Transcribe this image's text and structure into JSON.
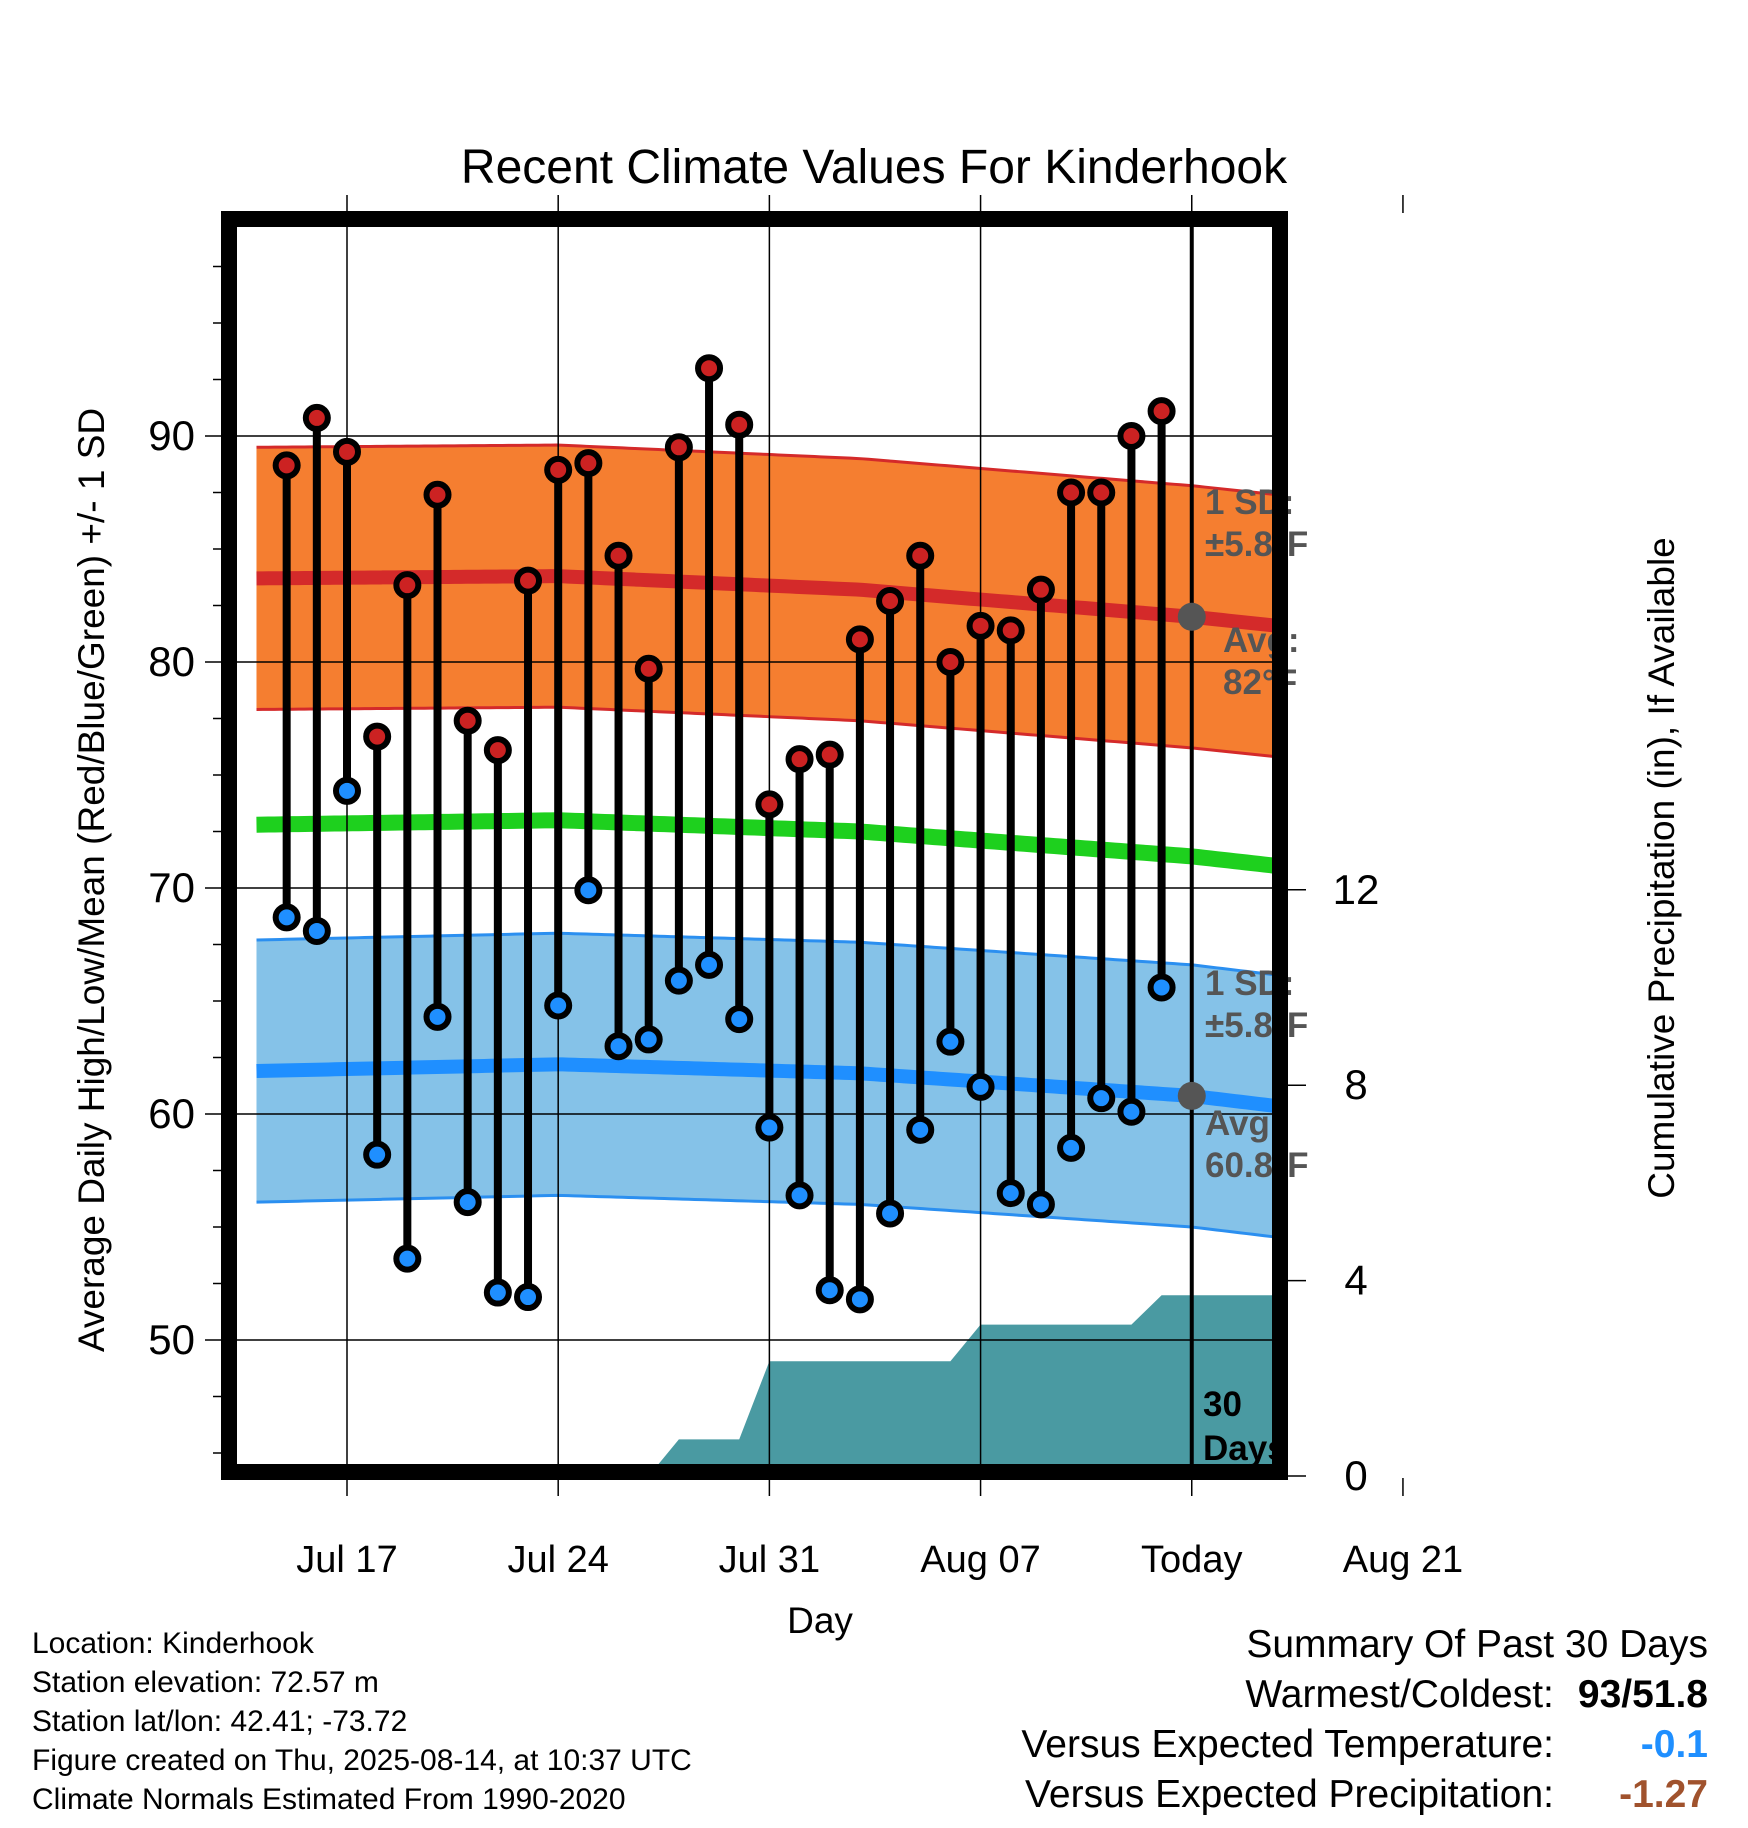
{
  "chart_data": {
    "type": "line",
    "title": "Recent Climate Values For Kinderhook",
    "xlabel": "Day",
    "ylabel": "Average Daily High/Low/Mean (Red/Blue/Green) +/- 1 SD",
    "y2label": "Cumulative Precipitation (in), If Available",
    "ylim": [
      44,
      98
    ],
    "y2lim": [
      0,
      25.6
    ],
    "xlim": [
      "2025-07-14",
      "2025-08-24"
    ],
    "x_ticks": [
      {
        "date": "2025-07-17",
        "label": "Jul 17"
      },
      {
        "date": "2025-07-24",
        "label": "Jul 24"
      },
      {
        "date": "2025-07-31",
        "label": "Jul 31"
      },
      {
        "date": "2025-08-07",
        "label": "Aug 07"
      },
      {
        "date": "2025-08-14",
        "label": "Today"
      },
      {
        "date": "2025-08-21",
        "label": "Aug 21"
      }
    ],
    "y_ticks": [
      50,
      60,
      70,
      80,
      90
    ],
    "y2_ticks": [
      0,
      4,
      8,
      12
    ],
    "grid": true,
    "today": "2025-08-14",
    "days": [
      "2025-07-15",
      "2025-07-16",
      "2025-07-17",
      "2025-07-18",
      "2025-07-19",
      "2025-07-20",
      "2025-07-21",
      "2025-07-22",
      "2025-07-23",
      "2025-07-24",
      "2025-07-25",
      "2025-07-26",
      "2025-07-27",
      "2025-07-28",
      "2025-07-29",
      "2025-07-30",
      "2025-07-31",
      "2025-08-01",
      "2025-08-02",
      "2025-08-03",
      "2025-08-04",
      "2025-08-05",
      "2025-08-06",
      "2025-08-07",
      "2025-08-08",
      "2025-08-09",
      "2025-08-10",
      "2025-08-11",
      "2025-08-12",
      "2025-08-13"
    ],
    "series": [
      {
        "name": "High",
        "color": "#cc2222",
        "values": [
          88.7,
          90.8,
          89.3,
          76.7,
          83.4,
          87.4,
          77.4,
          76.1,
          83.6,
          88.5,
          88.8,
          84.7,
          79.7,
          89.5,
          93.0,
          90.5,
          73.7,
          75.7,
          75.9,
          81.0,
          82.7,
          84.7,
          80.0,
          81.6,
          81.4,
          83.2,
          87.5,
          87.5,
          90.0,
          91.1
        ]
      },
      {
        "name": "Low",
        "color": "#1f8fff",
        "values": [
          68.7,
          68.1,
          74.3,
          58.2,
          53.6,
          64.3,
          56.1,
          52.1,
          51.9,
          64.8,
          69.9,
          63.0,
          63.3,
          65.9,
          66.6,
          64.2,
          59.4,
          56.4,
          52.2,
          51.8,
          55.6,
          59.3,
          63.2,
          61.2,
          56.5,
          56.0,
          58.5,
          60.7,
          60.1,
          65.6
        ]
      }
    ],
    "normals": {
      "dates": [
        "2025-07-14",
        "2025-07-24",
        "2025-08-03",
        "2025-08-14",
        "2025-08-24"
      ],
      "high_avg": [
        83.7,
        83.8,
        83.2,
        82.0,
        80.6
      ],
      "low_avg": [
        61.9,
        62.2,
        61.8,
        60.8,
        59.2
      ],
      "mean_avg": [
        72.8,
        73.0,
        72.5,
        71.4,
        69.9
      ],
      "sd": 5.8
    },
    "precip_cumulative": {
      "dates": [
        "2025-07-14",
        "2025-07-27",
        "2025-07-28",
        "2025-07-30",
        "2025-07-31",
        "2025-08-01",
        "2025-08-06",
        "2025-08-07",
        "2025-08-12",
        "2025-08-13",
        "2025-08-24"
      ],
      "values": [
        0,
        0,
        0.75,
        0.75,
        2.35,
        2.35,
        2.35,
        3.1,
        3.1,
        3.7,
        3.7
      ],
      "color": "#4a9aa2"
    },
    "annotations": {
      "high_sd_label": "1 SD:",
      "high_sd_value": "±5.8°F",
      "high_avg_label": "Avg:",
      "high_avg_value": "82°F",
      "low_sd_label": "1 SD:",
      "low_sd_value": "±5.8°F",
      "low_avg_label": "Avg:",
      "low_avg_value": "60.8°F",
      "days_number": "30",
      "days_word": "Days"
    }
  },
  "meta": {
    "location": "Location: Kinderhook",
    "elevation": "Station elevation: 72.57 m",
    "latlon": "Station lat/lon: 42.41; -73.72",
    "created": "Figure created on Thu, 2025-08-14, at 10:37 UTC",
    "normals": "Climate Normals Estimated From 1990-2020"
  },
  "summary": {
    "title": "Summary Of Past 30 Days",
    "warmest_label": "Warmest/Coldest:",
    "warmest_value": "93/51.8",
    "temp_label": "Versus Expected Temperature:",
    "temp_value": "-0.1",
    "temp_color": "#1f8fff",
    "precip_label": "Versus Expected Precipitation:",
    "precip_value": "-1.27",
    "precip_color": "#a0522d"
  }
}
